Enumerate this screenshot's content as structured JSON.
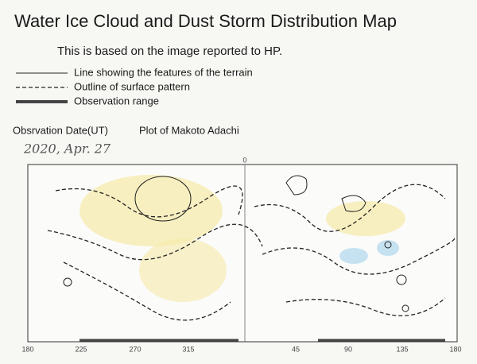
{
  "header": {
    "title": "Water Ice Cloud and Dust Storm Distribution Map",
    "subtitle": "This is based on the image reported to HP."
  },
  "legend": [
    {
      "label": "Line showing the features of the terrain"
    },
    {
      "label": "Outline of surface pattern"
    },
    {
      "label": "Observation range"
    }
  ],
  "observation": {
    "date_label": "Obsrvation Date(UT)",
    "plot_by": "Plot of Makoto Adachi",
    "date": "2020, Apr. 27"
  },
  "map": {
    "top_label": 0,
    "longitude_labels": [
      180,
      225,
      270,
      315,
      45,
      90,
      135,
      180
    ]
  }
}
